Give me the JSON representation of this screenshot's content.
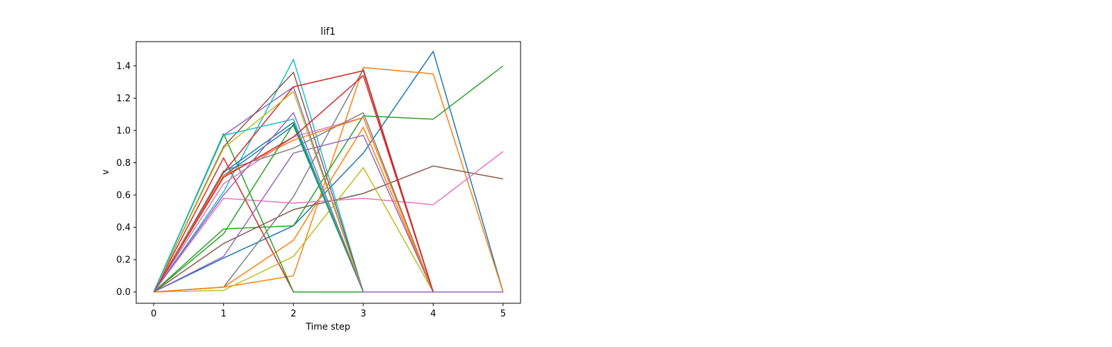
{
  "chart_data": {
    "type": "line",
    "title": "lif1",
    "xlabel": "Time step",
    "ylabel": "v",
    "xlim": [
      -0.25,
      5.25
    ],
    "ylim": [
      -0.07,
      1.55
    ],
    "x_ticks": [
      0,
      1,
      2,
      3,
      4,
      5
    ],
    "x_tick_labels": [
      "0",
      "1",
      "2",
      "3",
      "4",
      "5"
    ],
    "y_ticks": [
      0.0,
      0.2,
      0.4,
      0.6,
      0.8,
      1.0,
      1.2,
      1.4
    ],
    "y_tick_labels": [
      "0.0",
      "0.2",
      "0.4",
      "0.6",
      "0.8",
      "1.0",
      "1.2",
      "1.4"
    ],
    "grid": false,
    "x": [
      0,
      1,
      2,
      3,
      4,
      5
    ],
    "series": [
      {
        "color": "#1f77b4",
        "values": [
          0,
          0.21,
          0.41,
          0.86,
          1.49,
          0
        ]
      },
      {
        "color": "#ff7f0e",
        "values": [
          0,
          0.03,
          0.1,
          1.39,
          1.35,
          0
        ]
      },
      {
        "color": "#2ca02c",
        "values": [
          0,
          0.39,
          0.41,
          1.09,
          1.07,
          1.4
        ]
      },
      {
        "color": "#d62728",
        "values": [
          0,
          0.83,
          0.0,
          0,
          0,
          0
        ]
      },
      {
        "color": "#9467bd",
        "values": [
          0,
          0.97,
          1.27,
          0,
          0,
          0
        ]
      },
      {
        "color": "#8c564b",
        "values": [
          0,
          0.3,
          0.51,
          0.61,
          0.78,
          0.7
        ]
      },
      {
        "color": "#e377c2",
        "values": [
          0,
          0.58,
          0.55,
          0.58,
          0.54,
          0.87
        ]
      },
      {
        "color": "#7f7f7f",
        "values": [
          0,
          0.03,
          0.59,
          1.38,
          0,
          0
        ]
      },
      {
        "color": "#bcbd22",
        "values": [
          0,
          0.01,
          0.22,
          0.77,
          0,
          0
        ]
      },
      {
        "color": "#17becf",
        "values": [
          0,
          0.62,
          1.44,
          0,
          0,
          0
        ]
      },
      {
        "color": "#1f77b4",
        "values": [
          0,
          0.74,
          1.05,
          0,
          0,
          0
        ]
      },
      {
        "color": "#ff7f0e",
        "values": [
          0,
          0.03,
          0.32,
          1.02,
          0,
          0
        ]
      },
      {
        "color": "#2ca02c",
        "values": [
          0,
          0.98,
          0.0,
          0,
          0,
          0
        ]
      },
      {
        "color": "#d62728",
        "values": [
          0,
          0.74,
          1.27,
          1.37,
          0,
          0
        ]
      },
      {
        "color": "#9467bd",
        "values": [
          0,
          0.22,
          0.86,
          0.97,
          0,
          0
        ]
      },
      {
        "color": "#8c564b",
        "values": [
          0,
          0.9,
          1.36,
          0,
          0,
          0
        ]
      },
      {
        "color": "#e377c2",
        "values": [
          0,
          0.67,
          0.96,
          1.08,
          0,
          0
        ]
      },
      {
        "color": "#7f7f7f",
        "values": [
          0,
          0.75,
          0.89,
          1.11,
          0,
          0
        ]
      },
      {
        "color": "#bcbd22",
        "values": [
          0,
          0.89,
          1.24,
          0,
          0,
          0
        ]
      },
      {
        "color": "#17becf",
        "values": [
          0,
          0.97,
          1.07,
          0,
          0,
          0
        ]
      },
      {
        "color": "#1f77b4",
        "values": [
          0,
          0.72,
          1.03,
          0,
          0,
          0
        ]
      },
      {
        "color": "#ff7f0e",
        "values": [
          0,
          0.72,
          0.94,
          1.08,
          0,
          0
        ]
      },
      {
        "color": "#2ca02c",
        "values": [
          0,
          0.36,
          1.04,
          0,
          0,
          0
        ]
      },
      {
        "color": "#d62728",
        "values": [
          0,
          0.71,
          0.96,
          1.34,
          0,
          0
        ]
      },
      {
        "color": "#9467bd",
        "values": [
          0,
          0.6,
          1.11,
          0,
          0,
          0
        ]
      }
    ]
  }
}
